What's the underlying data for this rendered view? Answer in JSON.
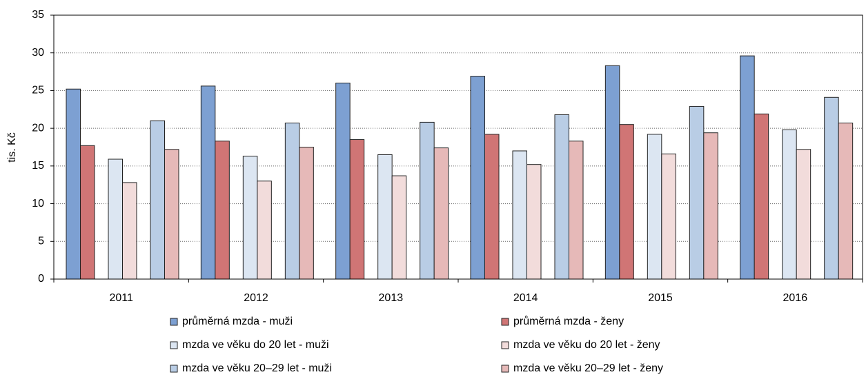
{
  "chart_data": {
    "type": "bar",
    "y_label": "tis. Kč",
    "categories": [
      "2011",
      "2012",
      "2013",
      "2014",
      "2015",
      "2016"
    ],
    "series": [
      {
        "name": "průměrná mzda - muži",
        "color": "#7da0d2",
        "values": [
          25.2,
          25.6,
          26.0,
          26.9,
          28.3,
          29.6
        ]
      },
      {
        "name": "průměrná mzda - ženy",
        "color": "#d07575",
        "values": [
          17.7,
          18.3,
          18.5,
          19.2,
          20.5,
          21.9
        ]
      },
      {
        "name": "mzda ve věku do 20 let - muži",
        "color": "#dce6f2",
        "values": [
          15.9,
          16.3,
          16.5,
          17.0,
          19.2,
          19.8
        ]
      },
      {
        "name": "mzda ve věku do 20 let - ženy",
        "color": "#f2dcdb",
        "values": [
          12.8,
          13.0,
          13.7,
          15.2,
          16.6,
          17.2
        ]
      },
      {
        "name": "mzda ve věku 20–29 let - muži",
        "color": "#b9cde5",
        "values": [
          21.0,
          20.7,
          20.8,
          21.8,
          22.9,
          24.1
        ]
      },
      {
        "name": "mzda ve věku 20–29 let - ženy",
        "color": "#e6b9b8",
        "values": [
          17.2,
          17.5,
          17.4,
          18.3,
          19.4,
          20.7
        ]
      }
    ],
    "ylim": [
      0,
      35
    ],
    "yticks": [
      0,
      5,
      10,
      15,
      20,
      25,
      30,
      35
    ],
    "grid": true
  }
}
